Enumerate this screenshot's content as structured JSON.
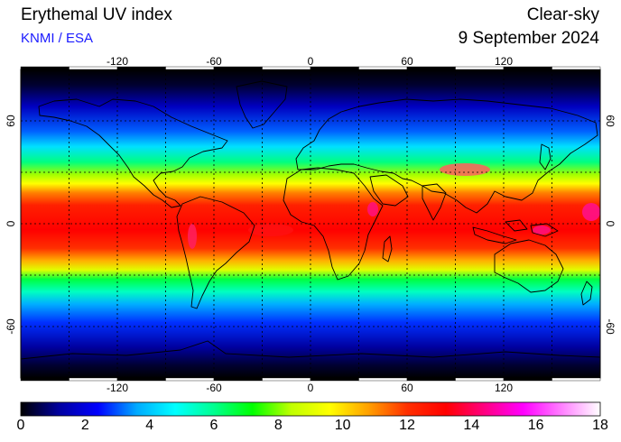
{
  "header": {
    "title": "Erythemal UV index",
    "source": "KNMI / ESA",
    "condition": "Clear-sky",
    "date": "9 September 2024"
  },
  "map": {
    "projection": "equirectangular",
    "lon_range": [
      -180,
      180
    ],
    "lat_range": [
      -90,
      90
    ],
    "grid": "dashed",
    "lon_ticks": [
      "-120",
      "-60",
      "0",
      "60",
      "120"
    ],
    "lat_ticks": [
      "60",
      "0",
      "-60"
    ],
    "lon_tick_values": [
      -120,
      -60,
      0,
      60,
      120
    ],
    "lat_tick_values": [
      60,
      0,
      -60
    ]
  },
  "colorbar": {
    "min": 0,
    "max": 18,
    "labels": [
      "0",
      "2",
      "4",
      "6",
      "8",
      "10",
      "12",
      "14",
      "16",
      "18"
    ],
    "stops": [
      "#000000",
      "#0000a0",
      "#0000ff",
      "#00aaff",
      "#00ffff",
      "#00ff90",
      "#00ff00",
      "#c0ff00",
      "#ffff00",
      "#ffa000",
      "#ff3000",
      "#ff0000",
      "#ff0080",
      "#ff00ff",
      "#ff80ff",
      "#ffffff"
    ]
  }
}
